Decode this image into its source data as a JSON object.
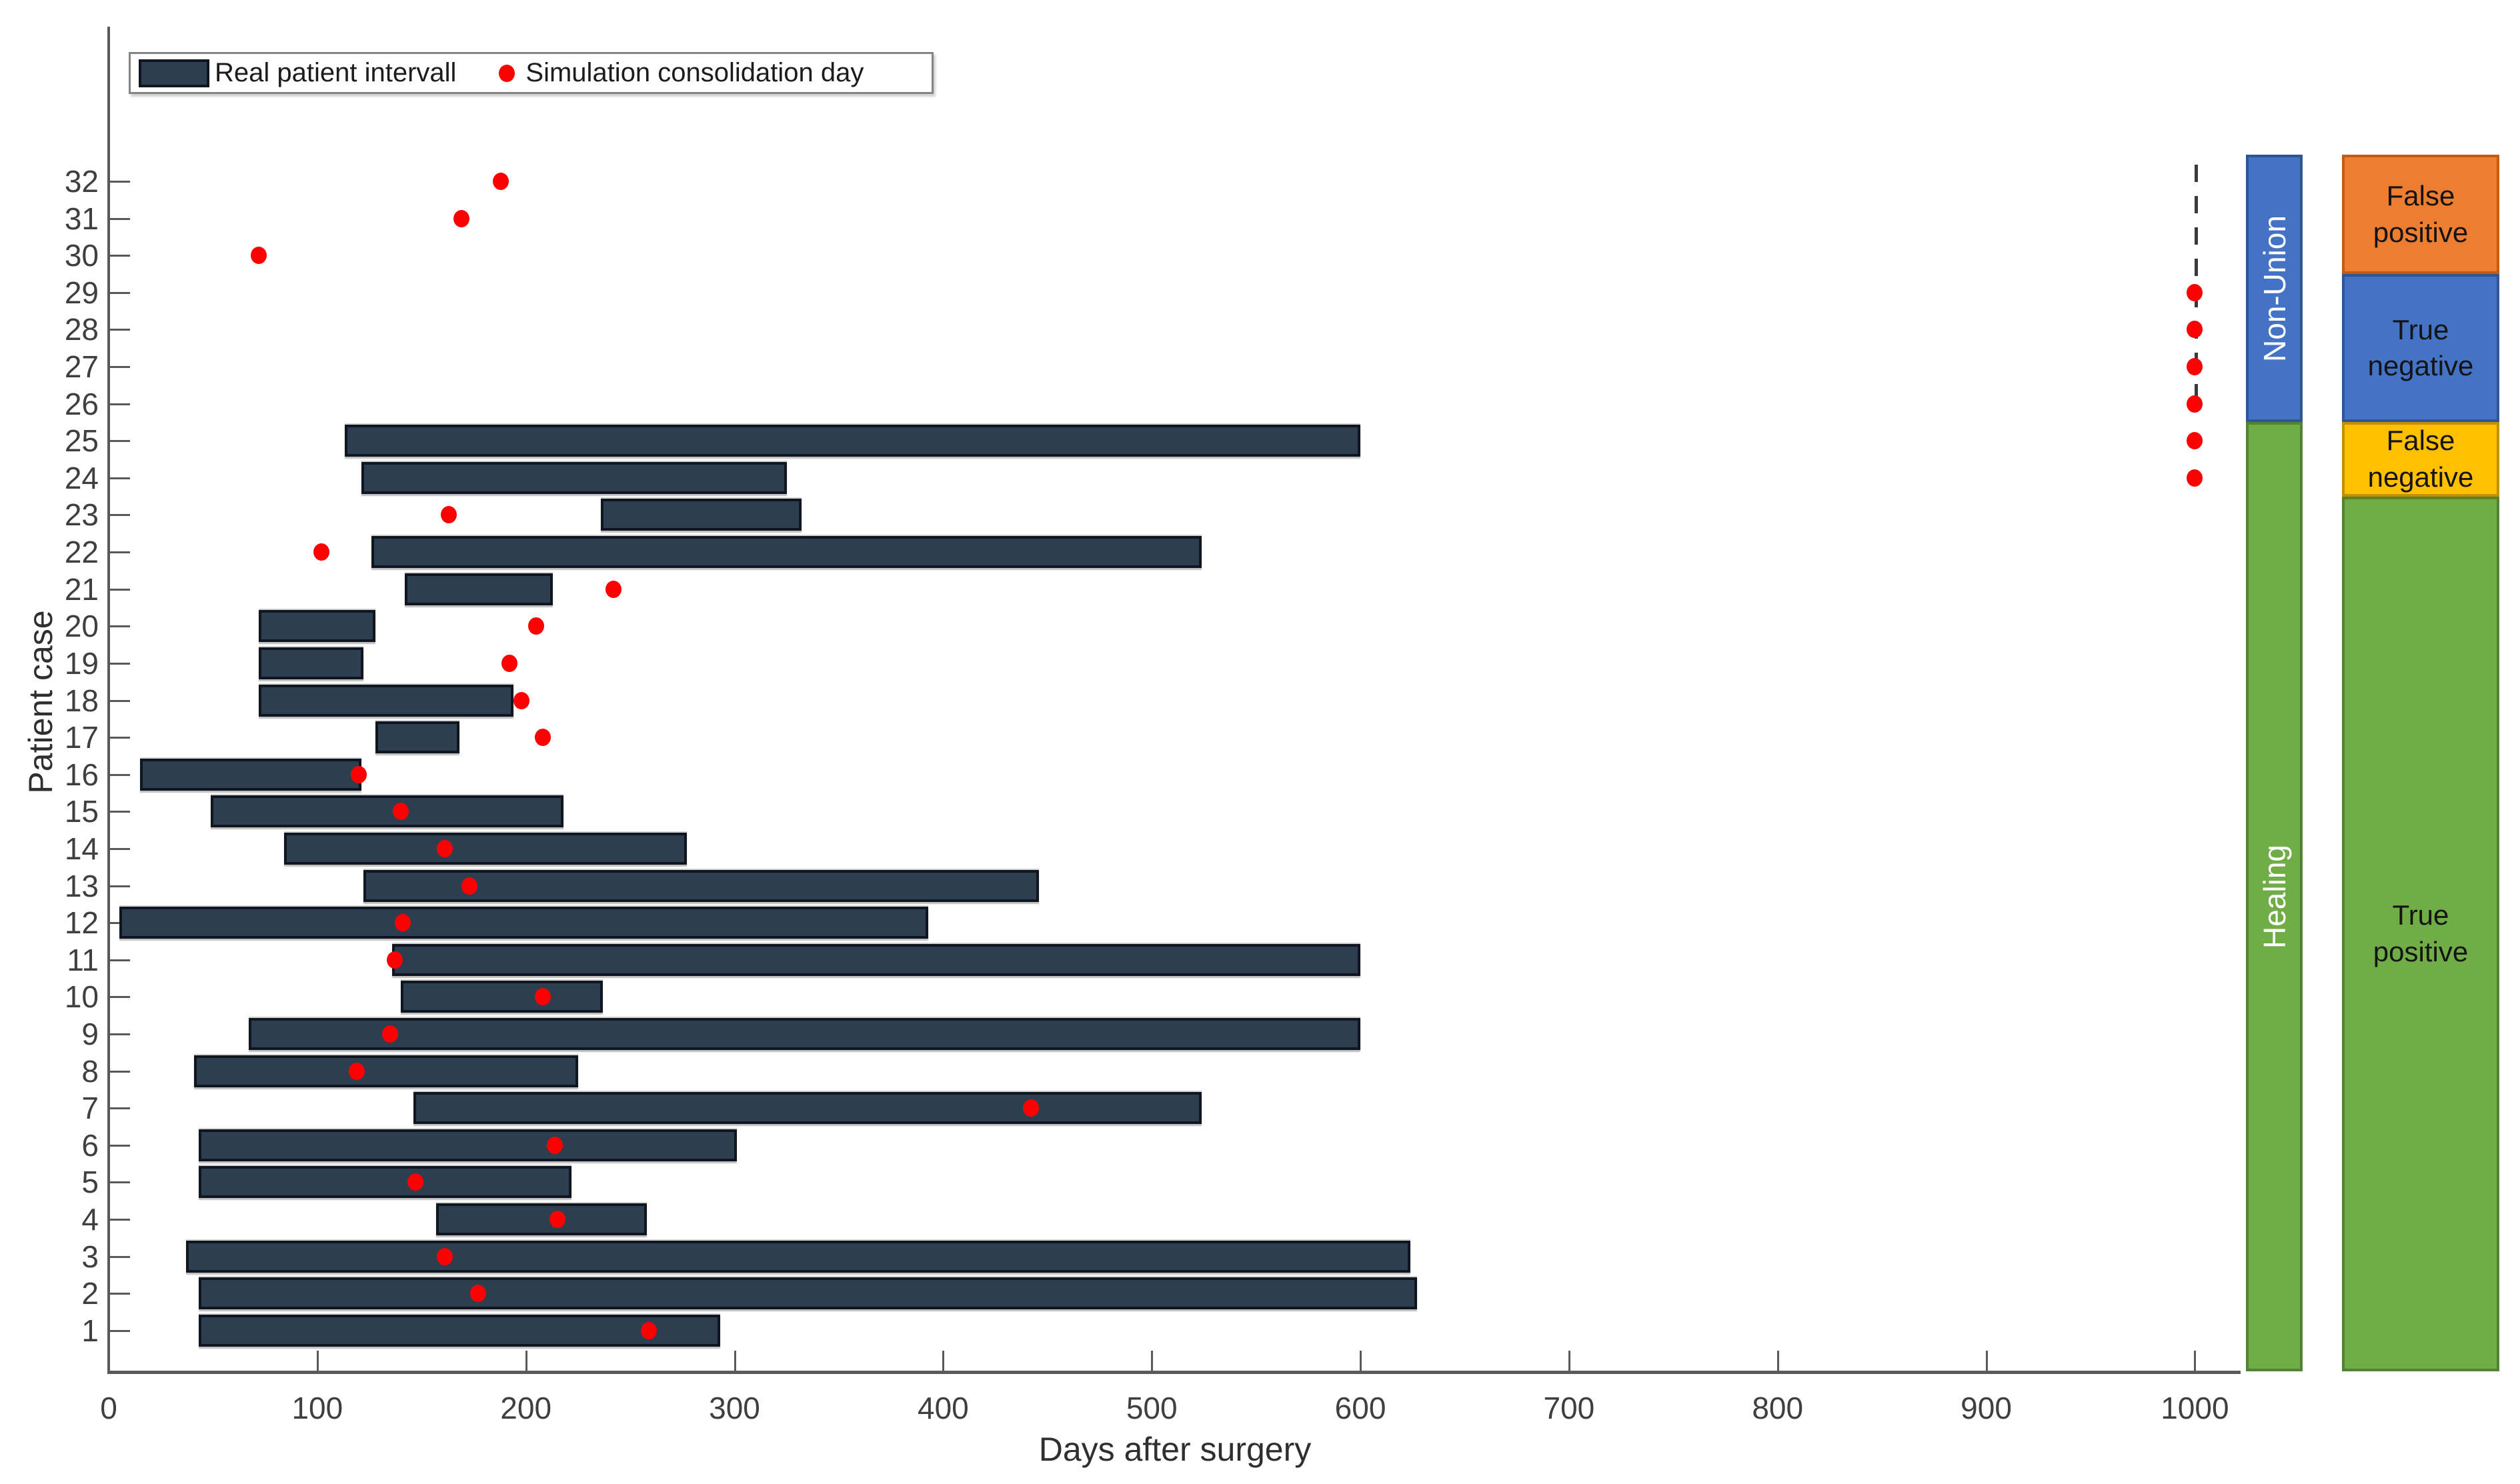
{
  "figure": {
    "background": "#ffffff"
  },
  "legend": {
    "items": [
      {
        "label": "Real patient intervall",
        "marker": "bar"
      },
      {
        "label": "Simulation consolidation day",
        "marker": "dot"
      }
    ]
  },
  "axes": {
    "xlabel": "Days after surgery",
    "ylabel": "Patient case",
    "x_ticks": [
      0,
      100,
      200,
      300,
      400,
      500,
      600,
      700,
      800,
      900,
      1000
    ],
    "y_ticks": [
      1,
      2,
      3,
      4,
      5,
      6,
      7,
      8,
      9,
      10,
      11,
      12,
      13,
      14,
      15,
      16,
      17,
      18,
      19,
      20,
      21,
      22,
      23,
      24,
      25,
      26,
      27,
      28,
      29,
      30,
      31,
      32
    ],
    "xlim": [
      0,
      1016
    ]
  },
  "colors": {
    "interval_bar_fill": "#2d3e50",
    "interval_bar_edge": "#10161f",
    "simulation_dot": "#ff0000",
    "axis": "#5a5a5a",
    "non_union_blue": "#4472c4",
    "non_union_blue_edge": "#2f5597",
    "healing_green": "#70ad47",
    "healing_green_edge": "#548235",
    "false_positive_orange": "#ed7d31",
    "false_positive_orange_edge": "#c55a11",
    "false_negative_yellow": "#ffc000",
    "false_negative_yellow_edge": "#bf9000"
  },
  "chart_data": {
    "type": "bar",
    "orientation": "horizontal",
    "overlay": "scatter",
    "title": "",
    "xlabel": "Days after surgery",
    "ylabel": "Patient case",
    "xlim": [
      0,
      1016
    ],
    "series": [
      {
        "name": "Real patient intervall",
        "kind": "interval"
      },
      {
        "name": "Simulation consolidation day",
        "kind": "scatter"
      }
    ],
    "cases": [
      {
        "case": 1,
        "interval": [
          43,
          293
        ],
        "sim_day": 259
      },
      {
        "case": 2,
        "interval": [
          43,
          627
        ],
        "sim_day": 177
      },
      {
        "case": 3,
        "interval": [
          37,
          624
        ],
        "sim_day": 161
      },
      {
        "case": 4,
        "interval": [
          157,
          258
        ],
        "sim_day": 215
      },
      {
        "case": 5,
        "interval": [
          43,
          222
        ],
        "sim_day": 147
      },
      {
        "case": 6,
        "interval": [
          43,
          301
        ],
        "sim_day": 214
      },
      {
        "case": 7,
        "interval": [
          146,
          524
        ],
        "sim_day": 442
      },
      {
        "case": 8,
        "interval": [
          41,
          225
        ],
        "sim_day": 119
      },
      {
        "case": 9,
        "interval": [
          67,
          600
        ],
        "sim_day": 135
      },
      {
        "case": 10,
        "interval": [
          140,
          237
        ],
        "sim_day": 208
      },
      {
        "case": 11,
        "interval": [
          136,
          600
        ],
        "sim_day": 137
      },
      {
        "case": 12,
        "interval": [
          5,
          393
        ],
        "sim_day": 141
      },
      {
        "case": 13,
        "interval": [
          122,
          446
        ],
        "sim_day": 173
      },
      {
        "case": 14,
        "interval": [
          84,
          277
        ],
        "sim_day": 161
      },
      {
        "case": 15,
        "interval": [
          49,
          218
        ],
        "sim_day": 140
      },
      {
        "case": 16,
        "interval": [
          15,
          121
        ],
        "sim_day": 120
      },
      {
        "case": 17,
        "interval": [
          128,
          168
        ],
        "sim_day": 208
      },
      {
        "case": 18,
        "interval": [
          72,
          194
        ],
        "sim_day": 198
      },
      {
        "case": 19,
        "interval": [
          72,
          122
        ],
        "sim_day": 192
      },
      {
        "case": 20,
        "interval": [
          72,
          128
        ],
        "sim_day": 205
      },
      {
        "case": 21,
        "interval": [
          142,
          213
        ],
        "sim_day": 242
      },
      {
        "case": 22,
        "interval": [
          126,
          524
        ],
        "sim_day": 102
      },
      {
        "case": 23,
        "interval": [
          236,
          332
        ],
        "sim_day": 163
      },
      {
        "case": 24,
        "interval": [
          121,
          325
        ],
        "sim_day": 1000
      },
      {
        "case": 25,
        "interval": [
          113,
          600
        ],
        "sim_day": 1000
      },
      {
        "case": 26,
        "interval": null,
        "sim_day": 1000
      },
      {
        "case": 27,
        "interval": null,
        "sim_day": 1000
      },
      {
        "case": 28,
        "interval": null,
        "sim_day": 1000
      },
      {
        "case": 29,
        "interval": null,
        "sim_day": 1000
      },
      {
        "case": 30,
        "interval": null,
        "sim_day": 72
      },
      {
        "case": 31,
        "interval": null,
        "sim_day": 169
      },
      {
        "case": 32,
        "interval": null,
        "sim_day": 188
      }
    ],
    "dashed_reference_line": {
      "day": 1000,
      "case_span": [
        32,
        26
      ]
    }
  },
  "annotations": {
    "outcome_bands": [
      {
        "label": "Non-Union",
        "cases": [
          32,
          26
        ],
        "fill": "#4472c4",
        "edge": "#2f5597",
        "text_color": "#ffffff"
      },
      {
        "label": "Healing",
        "cases": [
          25,
          1
        ],
        "fill": "#70ad47",
        "edge": "#548235",
        "text_color": "#ffffff"
      }
    ],
    "classification_bands": [
      {
        "label": "False positive",
        "cases": [
          32,
          30
        ],
        "fill": "#ed7d31",
        "edge": "#c55a11"
      },
      {
        "label": "True negative",
        "cases": [
          29,
          26
        ],
        "fill": "#4472c4",
        "edge": "#2f5597"
      },
      {
        "label": "False negative",
        "cases": [
          25,
          24
        ],
        "fill": "#ffc000",
        "edge": "#bf9000"
      },
      {
        "label": "True positive",
        "cases": [
          23,
          1
        ],
        "fill": "#70ad47",
        "edge": "#548235"
      }
    ]
  }
}
